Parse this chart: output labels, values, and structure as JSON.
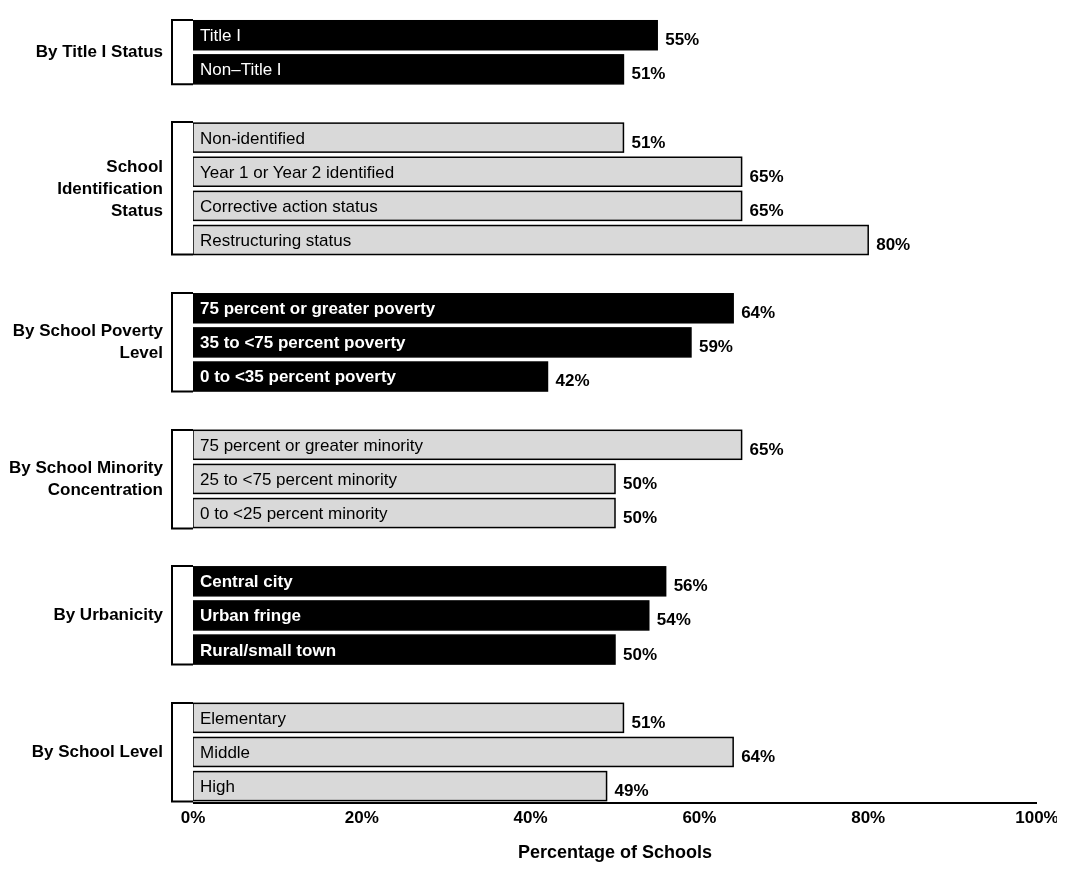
{
  "chart_data": {
    "type": "bar",
    "orientation": "horizontal",
    "xlabel": "Percentage of Schools",
    "categories": [
      "Title I",
      "Non–Title I",
      null,
      "Non-identified",
      "Year 1 or Year 2 identified",
      "Corrective action status",
      "Restructuring status",
      null,
      "75 percent or greater poverty",
      "35 to <75 percent poverty",
      "0 to <35 percent poverty",
      null,
      "75 percent or greater minority",
      "25 to <75 percent minority",
      "0 to <25 percent minority",
      null,
      "Central city",
      "Urban fringe",
      "Rural/small town",
      null,
      "Elementary",
      "Middle",
      "High"
    ],
    "values": [
      55,
      51,
      null,
      51,
      65,
      65,
      80,
      null,
      64,
      59,
      42,
      null,
      65,
      50,
      50,
      null,
      56,
      54,
      50,
      null,
      51,
      64,
      49
    ],
    "value_labels": [
      "55%",
      "51%",
      null,
      "51%",
      "65%",
      "65%",
      "80%",
      null,
      "64%",
      "59%",
      "42%",
      null,
      "65%",
      "50%",
      "50%",
      null,
      "56%",
      "54%",
      "50%",
      null,
      "51%",
      "64%",
      "49%"
    ],
    "colors": [
      "#000000",
      "#000000",
      null,
      "#d9d9d9",
      "#d9d9d9",
      "#d9d9d9",
      "#d9d9d9",
      null,
      "#000000",
      "#000000",
      "#000000",
      null,
      "#d9d9d9",
      "#d9d9d9",
      "#d9d9d9",
      null,
      "#000000",
      "#000000",
      "#000000",
      null,
      "#d9d9d9",
      "#d9d9d9",
      "#d9d9d9"
    ],
    "annotations": [
      "By Title I Status",
      "School Identification Status",
      "By School Poverty Level",
      "By School Minority Concentration",
      "By Urbanicity",
      "By School Level"
    ],
    "xlim": [
      0,
      100
    ],
    "xticks": [
      {
        "value": 0,
        "label": "0%"
      },
      {
        "value": 20,
        "label": "20%"
      },
      {
        "value": 40,
        "label": "40%"
      },
      {
        "value": 60,
        "label": "60%"
      },
      {
        "value": 80,
        "label": "80%"
      },
      {
        "value": 100,
        "label": "100%"
      }
    ],
    "grid": false,
    "legend": false
  }
}
